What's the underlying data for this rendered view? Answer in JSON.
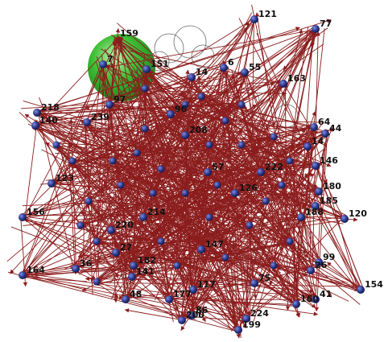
{
  "graph": {
    "background": "#ffffff",
    "edge_color": "#8b1d1d",
    "node_color": "#2e3a8c",
    "highlight_color": "#2fb12a",
    "loop_color": "#6a6a6a",
    "highlighted_node": "159",
    "nodes": [
      {
        "id": "121"
      },
      {
        "id": "77"
      },
      {
        "id": "159"
      },
      {
        "id": "7"
      },
      {
        "id": "151"
      },
      {
        "id": "14"
      },
      {
        "id": "6"
      },
      {
        "id": "55"
      },
      {
        "id": "163"
      },
      {
        "id": "218"
      },
      {
        "id": "140"
      },
      {
        "id": "97"
      },
      {
        "id": "96"
      },
      {
        "id": "64"
      },
      {
        "id": "44"
      },
      {
        "id": "14b",
        "label": "14"
      },
      {
        "id": "146"
      },
      {
        "id": "180"
      },
      {
        "id": "185"
      },
      {
        "id": "120"
      },
      {
        "id": "156"
      },
      {
        "id": "123"
      },
      {
        "id": "220"
      },
      {
        "id": "214"
      },
      {
        "id": "126"
      },
      {
        "id": "57"
      },
      {
        "id": "36"
      },
      {
        "id": "27"
      },
      {
        "id": "164"
      },
      {
        "id": "182"
      },
      {
        "id": "147"
      },
      {
        "id": "141"
      },
      {
        "id": "48"
      },
      {
        "id": "177"
      },
      {
        "id": "117"
      },
      {
        "id": "200"
      },
      {
        "id": "86"
      },
      {
        "id": "224"
      },
      {
        "id": "199"
      },
      {
        "id": "160"
      },
      {
        "id": "41"
      },
      {
        "id": "154"
      },
      {
        "id": "26"
      },
      {
        "id": "99"
      },
      {
        "id": "75"
      },
      {
        "id": "188"
      },
      {
        "id": "239"
      },
      {
        "id": "208"
      },
      {
        "id": "222"
      }
    ]
  }
}
